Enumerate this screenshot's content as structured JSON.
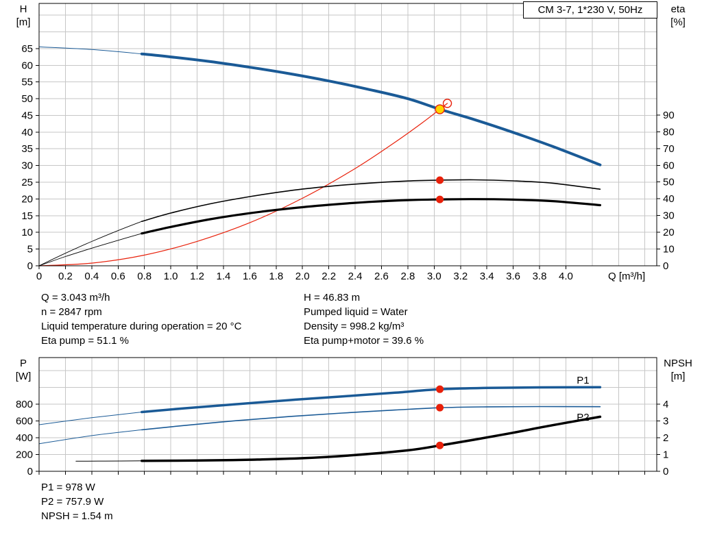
{
  "colors": {
    "curve_blue": "#1a5a96",
    "curve_red": "#e8200a",
    "dot_red": "#e8200a",
    "duty_yellow": "#ffd500",
    "grid": "#c6c6c6"
  },
  "info": {
    "rows": [
      {
        "left": "Q = 3.043 m³/h",
        "right": "H = 46.83 m"
      },
      {
        "left": "n = 2847 rpm",
        "right": "Pumped liquid = Water"
      },
      {
        "left": "Liquid temperature during operation = 20 °C",
        "right": "Density = 998.2 kg/m³"
      },
      {
        "left": "Eta pump = 51.1 %",
        "right": "Eta pump+motor = 39.6 %"
      }
    ]
  },
  "footer": {
    "lines": [
      "P1 = 978 W",
      "P2 = 757.9 W",
      "NPSH = 1.54 m"
    ]
  },
  "chart_data": [
    {
      "type": "line",
      "title": "CM 3-7, 1*230 V, 50Hz",
      "xlabel": "Q [m³/h]",
      "ylabel_left": [
        "H",
        "[m]"
      ],
      "ylabel_right": [
        "eta",
        "[%]"
      ],
      "xlim": [
        0,
        4.69
      ],
      "ylim_left": [
        0,
        78.5
      ],
      "ylim_right": [
        0,
        156.6
      ],
      "grid": {
        "x": 0.2,
        "y": 5
      },
      "x_ticks": [
        0,
        0.2,
        0.4,
        0.6,
        0.8,
        1.0,
        1.2,
        1.4,
        1.6,
        1.8,
        2.0,
        2.2,
        2.4,
        2.6,
        2.8,
        3.0,
        3.2,
        3.4,
        3.6,
        3.8,
        4.0
      ],
      "x_tick_labels": [
        "0",
        "0.2",
        "0.4",
        "0.6",
        "0.8",
        "1.0",
        "1.2",
        "1.4",
        "1.6",
        "1.8",
        "2.0",
        "2.2",
        "2.4",
        "2.6",
        "2.8",
        "3.0",
        "3.2",
        "3.4",
        "3.6",
        "3.8",
        "4.0"
      ],
      "y_ticks_left": [
        0,
        5,
        10,
        15,
        20,
        25,
        30,
        35,
        40,
        45,
        50,
        55,
        60,
        65
      ],
      "y_ticks_right": [
        0,
        10,
        20,
        30,
        40,
        50,
        60,
        70,
        80,
        90
      ],
      "series": [
        {
          "name": "head-curve-leadin",
          "axis": "left",
          "color": "#1a5a96",
          "width": 1,
          "points": [
            [
              0,
              65.5
            ],
            [
              0.4,
              64.7
            ],
            [
              0.78,
              63.4
            ]
          ]
        },
        {
          "name": "head-curve",
          "axis": "left",
          "color": "#1a5a96",
          "width": 4,
          "points": [
            [
              0.78,
              63.4
            ],
            [
              1.0,
              62.5
            ],
            [
              1.3,
              61.1
            ],
            [
              1.6,
              59.4
            ],
            [
              1.9,
              57.5
            ],
            [
              2.2,
              55.3
            ],
            [
              2.5,
              52.8
            ],
            [
              2.8,
              50.0
            ],
            [
              3.043,
              46.83
            ],
            [
              3.3,
              43.8
            ],
            [
              3.6,
              39.9
            ],
            [
              3.9,
              35.7
            ],
            [
              4.26,
              30.2
            ]
          ]
        },
        {
          "name": "system-curve",
          "axis": "left",
          "color": "#e8200a",
          "width": 1.2,
          "points": [
            [
              0,
              0
            ],
            [
              0.4,
              0.8
            ],
            [
              0.8,
              3.2
            ],
            [
              1.2,
              7.3
            ],
            [
              1.6,
              12.9
            ],
            [
              2.0,
              20.2
            ],
            [
              2.4,
              29.1
            ],
            [
              2.7,
              36.9
            ],
            [
              2.9,
              42.5
            ],
            [
              3.043,
              46.83
            ],
            [
              3.1,
              48.6
            ]
          ]
        },
        {
          "name": "eta-pump-leadin",
          "axis": "right",
          "color": "#000000",
          "width": 0.9,
          "points": [
            [
              0,
              0
            ],
            [
              0.2,
              7.5
            ],
            [
              0.4,
              14.5
            ],
            [
              0.6,
              21.0
            ],
            [
              0.78,
              26.5
            ]
          ]
        },
        {
          "name": "eta-pump-curve",
          "axis": "right",
          "color": "#000000",
          "width": 1.6,
          "points": [
            [
              0.78,
              26.5
            ],
            [
              1.0,
              31.5
            ],
            [
              1.3,
              37.0
            ],
            [
              1.6,
              41.3
            ],
            [
              1.9,
              44.8
            ],
            [
              2.2,
              47.4
            ],
            [
              2.5,
              49.3
            ],
            [
              2.8,
              50.6
            ],
            [
              3.043,
              51.1
            ],
            [
              3.3,
              51.3
            ],
            [
              3.6,
              50.7
            ],
            [
              3.9,
              49.3
            ],
            [
              4.26,
              45.7
            ]
          ]
        },
        {
          "name": "eta-pump-motor-leadin",
          "axis": "right",
          "color": "#000000",
          "width": 0.9,
          "points": [
            [
              0,
              0
            ],
            [
              0.2,
              5.5
            ],
            [
              0.4,
              10.5
            ],
            [
              0.6,
              15.2
            ],
            [
              0.78,
              19.3
            ]
          ]
        },
        {
          "name": "eta-pump-motor-curve",
          "axis": "right",
          "color": "#000000",
          "width": 3.2,
          "points": [
            [
              0.78,
              19.3
            ],
            [
              1.0,
              23.2
            ],
            [
              1.3,
              27.8
            ],
            [
              1.6,
              31.4
            ],
            [
              1.9,
              34.2
            ],
            [
              2.2,
              36.4
            ],
            [
              2.5,
              38.1
            ],
            [
              2.8,
              39.2
            ],
            [
              3.043,
              39.6
            ],
            [
              3.3,
              39.8
            ],
            [
              3.6,
              39.5
            ],
            [
              3.9,
              38.6
            ],
            [
              4.26,
              36.2
            ]
          ]
        }
      ],
      "markers": [
        {
          "q": 3.1,
          "v": 48.6,
          "axis": "left",
          "style": "open"
        },
        {
          "q": 3.043,
          "v": 51.1,
          "axis": "right",
          "style": "dot"
        },
        {
          "q": 3.043,
          "v": 39.6,
          "axis": "right",
          "style": "dot"
        },
        {
          "q": 3.043,
          "v": 46.83,
          "axis": "left",
          "style": "duty"
        }
      ],
      "labels": []
    },
    {
      "type": "line",
      "title": "",
      "xlabel": "",
      "ylabel_left": [
        "P",
        "[W]"
      ],
      "ylabel_right": [
        "NPSH",
        "[m]"
      ],
      "xlim": [
        0,
        4.69
      ],
      "ylim_left": [
        0,
        1355
      ],
      "ylim_right": [
        0,
        6.78
      ],
      "grid": {
        "x": 0.2,
        "y": 200
      },
      "x_ticks": [
        0,
        0.2,
        0.4,
        0.6,
        0.8,
        1.0,
        1.2,
        1.4,
        1.6,
        1.8,
        2.0,
        2.2,
        2.4,
        2.6,
        2.8,
        3.0,
        3.2,
        3.4,
        3.6,
        3.8,
        4.0,
        4.2,
        4.4,
        4.6
      ],
      "x_tick_labels": [],
      "y_ticks_left": [
        0,
        200,
        400,
        600,
        800
      ],
      "y_ticks_right": [
        0,
        1,
        2,
        3,
        4
      ],
      "series": [
        {
          "name": "p1-leadin",
          "axis": "left",
          "color": "#1a5a96",
          "width": 1,
          "points": [
            [
              0,
              555
            ],
            [
              0.4,
              638
            ],
            [
              0.78,
              706
            ]
          ]
        },
        {
          "name": "p1-curve",
          "axis": "left",
          "color": "#1a5a96",
          "width": 3.5,
          "points": [
            [
              0.78,
              706
            ],
            [
              1.1,
              750
            ],
            [
              1.5,
              800
            ],
            [
              1.9,
              848
            ],
            [
              2.3,
              892
            ],
            [
              2.7,
              936
            ],
            [
              3.043,
              978
            ],
            [
              3.4,
              993
            ],
            [
              3.8,
              1000
            ],
            [
              4.26,
              1002
            ]
          ]
        },
        {
          "name": "p2-leadin",
          "axis": "left",
          "color": "#1a5a96",
          "width": 1,
          "points": [
            [
              0,
              328
            ],
            [
              0.4,
              425
            ],
            [
              0.78,
              495
            ]
          ]
        },
        {
          "name": "p2-curve",
          "axis": "left",
          "color": "#1a5a96",
          "width": 1.6,
          "points": [
            [
              0.78,
              495
            ],
            [
              1.1,
              545
            ],
            [
              1.5,
              603
            ],
            [
              1.9,
              652
            ],
            [
              2.3,
              694
            ],
            [
              2.7,
              730
            ],
            [
              3.043,
              757.9
            ],
            [
              3.4,
              768
            ],
            [
              3.8,
              771
            ],
            [
              4.26,
              770
            ]
          ]
        },
        {
          "name": "npsh-leadin",
          "axis": "right",
          "color": "#000000",
          "width": 1,
          "points": [
            [
              0.28,
              0.6
            ],
            [
              0.5,
              0.61
            ],
            [
              0.78,
              0.62
            ]
          ]
        },
        {
          "name": "npsh-curve",
          "axis": "right",
          "color": "#000000",
          "width": 3.5,
          "points": [
            [
              0.78,
              0.62
            ],
            [
              1.2,
              0.64
            ],
            [
              1.6,
              0.69
            ],
            [
              2.0,
              0.78
            ],
            [
              2.4,
              0.97
            ],
            [
              2.8,
              1.25
            ],
            [
              3.043,
              1.54
            ],
            [
              3.3,
              1.88
            ],
            [
              3.6,
              2.3
            ],
            [
              3.9,
              2.75
            ],
            [
              4.26,
              3.25
            ]
          ]
        }
      ],
      "markers": [
        {
          "q": 3.043,
          "v": 978,
          "axis": "left",
          "style": "dot"
        },
        {
          "q": 3.043,
          "v": 757.9,
          "axis": "left",
          "style": "dot"
        },
        {
          "q": 3.043,
          "v": 1.54,
          "axis": "right",
          "style": "dot"
        }
      ],
      "labels": [
        {
          "text": "P1",
          "q": 4.13,
          "v": 1085,
          "axis": "left",
          "color": "#1a5a96"
        },
        {
          "text": "P2",
          "q": 4.13,
          "v": 645,
          "axis": "left",
          "color": "#1a5a96"
        }
      ]
    }
  ]
}
